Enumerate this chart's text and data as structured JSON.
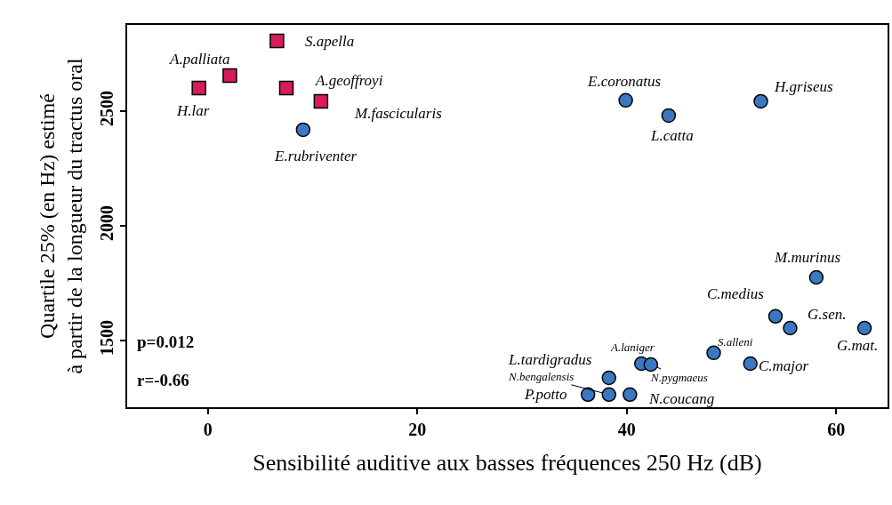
{
  "chart_data": {
    "type": "scatter",
    "xlabel": "Sensibilité auditive aux basses fréquences 250 Hz (dB)",
    "ylabel": "Quartile 25% (en Hz) estimé\nà partir de la longueur du tractus oral",
    "xlim": [
      -7.7,
      64.9
    ],
    "ylim": [
      1209,
      2876
    ],
    "xticks": [
      0,
      20,
      40,
      60
    ],
    "yticks": [
      1500,
      2000,
      2500
    ],
    "series": [
      {
        "color": "#d81b5a",
        "marker": "square",
        "x": [
          -0.85,
          2.1,
          6.6,
          7.5,
          10.8
        ],
        "values": [
          2601,
          2655,
          2806,
          2601,
          2543
        ]
      },
      {
        "color": "#3a78c2",
        "marker": "circle",
        "x": [
          9.1,
          39.9,
          44.0,
          52.8,
          58.1,
          54.2,
          55.6,
          62.7,
          48.3,
          51.8,
          41.4,
          42.3,
          38.3,
          38.3,
          36.3,
          40.3
        ],
        "values": [
          2419,
          2547,
          2481,
          2543,
          1775,
          1605,
          1554,
          1554,
          1446,
          1399,
          1399,
          1395,
          1337,
          1264,
          1264,
          1264
        ]
      }
    ],
    "annotations": [
      {
        "text": "H.lar",
        "x": -0.85,
        "y": 2601
      },
      {
        "text": "A.palliata",
        "x": 2.1,
        "y": 2655
      },
      {
        "text": "S.apella",
        "x": 6.6,
        "y": 2806
      },
      {
        "text": "A.geoffroyi",
        "x": 7.5,
        "y": 2601
      },
      {
        "text": "M.fascicularis",
        "x": 10.8,
        "y": 2543
      },
      {
        "text": "E.rubriventer",
        "x": 9.1,
        "y": 2419
      },
      {
        "text": "E.coronatus",
        "x": 39.9,
        "y": 2547
      },
      {
        "text": "L.catta",
        "x": 44.0,
        "y": 2481
      },
      {
        "text": "H.griseus",
        "x": 52.8,
        "y": 2543
      },
      {
        "text": "M.murinus",
        "x": 58.1,
        "y": 1775
      },
      {
        "text": "C.medius",
        "x": 54.2,
        "y": 1605
      },
      {
        "text": "G.sen.",
        "x": 55.6,
        "y": 1554
      },
      {
        "text": "G.mat.",
        "x": 62.7,
        "y": 1554
      },
      {
        "text": "S.alleni",
        "x": 48.3,
        "y": 1446
      },
      {
        "text": "C.major",
        "x": 51.8,
        "y": 1399
      },
      {
        "text": "A.laniger",
        "x": 41.4,
        "y": 1399
      },
      {
        "text": "N.pygmaeus",
        "x": 42.3,
        "y": 1395
      },
      {
        "text": "L.tardigradus",
        "x": 38.3,
        "y": 1337
      },
      {
        "text": "N.bengalensis",
        "x": 38.3,
        "y": 1264
      },
      {
        "text": "P.potto",
        "x": 36.3,
        "y": 1264
      },
      {
        "text": "N.coucang",
        "x": 40.3,
        "y": 1264
      },
      "p=0.012",
      "r=-0.66"
    ]
  }
}
